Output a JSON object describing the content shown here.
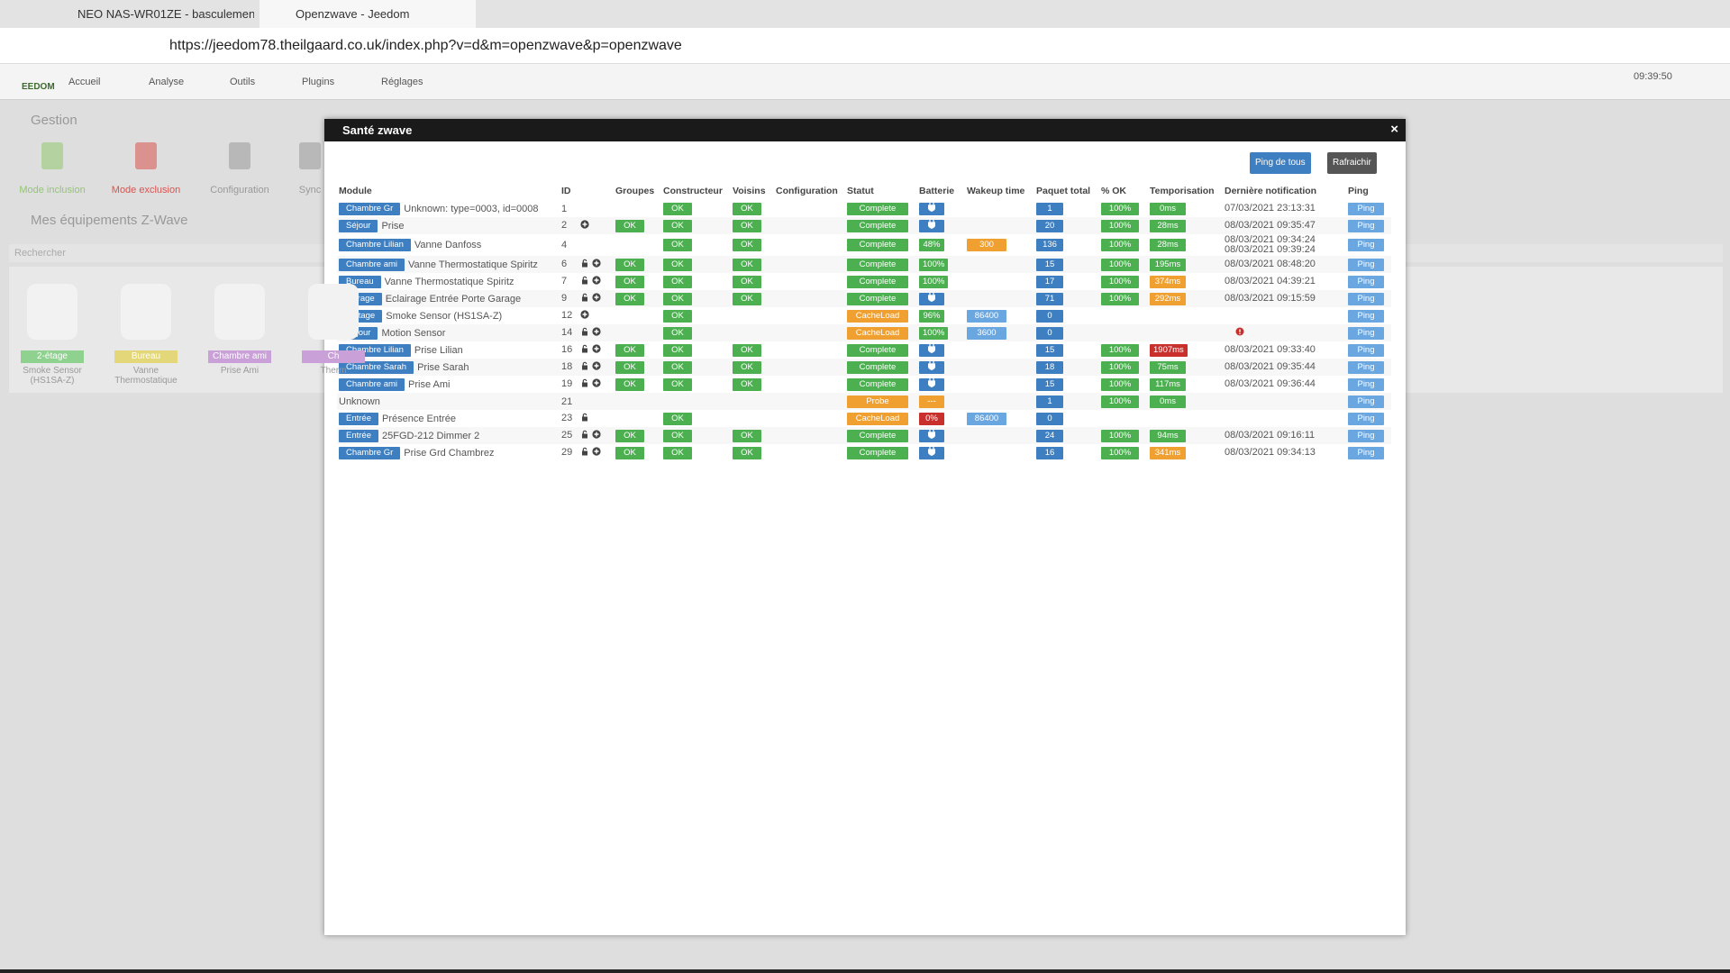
{
  "browser": {
    "tabs": [
      "NEO NAS-WR01ZE - basculemen",
      "Openzwave - Jeedom"
    ],
    "url": "https://jeedom78.theilgaard.co.uk/index.php?v=d&m=openzwave&p=openzwave"
  },
  "navbar": {
    "logo": "EEDOM",
    "menu": [
      "Accueil",
      "Analyse",
      "Outils",
      "Plugins",
      "Réglages"
    ],
    "time": "09:39:50"
  },
  "gestion": {
    "title": "Gestion",
    "actions": [
      "Mode inclusion",
      "Mode exclusion",
      "Configuration",
      "Sync"
    ]
  },
  "equipements": {
    "title": "Mes équipements Z-Wave",
    "search_placeholder": "Rechercher",
    "devices": [
      {
        "room": "2-étage",
        "name": "Smoke Sensor (HS1SA-Z)",
        "color": "#8fd18f"
      },
      {
        "room": "Bureau",
        "name": "Vanne Thermostatique",
        "color": "#e3d77a"
      },
      {
        "room": "Chambre ami",
        "name": "Prise Ami",
        "color": "#c9a0d8"
      },
      {
        "room": "Ch",
        "name": "Therm",
        "color": "#c9a0d8"
      }
    ]
  },
  "modal": {
    "title": "Santé zwave",
    "buttons": [
      "Ping de tous",
      "Rafraichir"
    ],
    "columns": [
      "Module",
      "ID",
      "Groupes",
      "Constructeur",
      "Voisins",
      "Configuration",
      "Statut",
      "Batterie",
      "Wakeup time",
      "Paquet total",
      "% OK",
      "Temporisation",
      "Dernière notification",
      "Ping"
    ],
    "rows": [
      {
        "room": "Chambre Gr",
        "module": "Unknown: type=0003, id=0008",
        "id": 1,
        "constructeur": "OK",
        "voisins": "OK",
        "statut": "Complete",
        "plug": true,
        "paquet": "1",
        "ok": "100%",
        "tempo": "0ms",
        "notification": [
          "07/03/2021 23:13:31"
        ],
        "ping": "Ping"
      },
      {
        "room": "Séjour",
        "module": "Prise",
        "id": 2,
        "plus": true,
        "groupes": "OK",
        "constructeur": "OK",
        "voisins": "OK",
        "statut": "Complete",
        "plug": true,
        "paquet": "20",
        "ok": "100%",
        "tempo": "28ms",
        "notification": [
          "08/03/2021 09:35:47"
        ],
        "ping": "Ping"
      },
      {
        "room": "Chambre Lilian",
        "module": "Vanne Danfoss",
        "id": 4,
        "constructeur": "OK",
        "voisins": "OK",
        "statut": "Complete",
        "batterie": "48%",
        "wakeup": "300",
        "paquet": "136",
        "ok": "100%",
        "tempo": "28ms",
        "notification": [
          "08/03/2021 09:34:24",
          "08/03/2021 09:39:24"
        ],
        "ping": "Ping",
        "colors": {
          "wakeup": "#f0a030"
        }
      },
      {
        "room": "Chambre ami",
        "module": "Vanne Thermostatique Spiritz",
        "id": 6,
        "lock": true,
        "plus": true,
        "groupes": "OK",
        "constructeur": "OK",
        "voisins": "OK",
        "statut": "Complete",
        "batterie": "100%",
        "paquet": "15",
        "ok": "100%",
        "tempo": "195ms",
        "notification": [
          "08/03/2021 08:48:20"
        ],
        "ping": "Ping"
      },
      {
        "room": "Bureau",
        "module": "Vanne Thermostatique Spiritz",
        "id": 7,
        "lock": true,
        "plus": true,
        "groupes": "OK",
        "constructeur": "OK",
        "voisins": "OK",
        "statut": "Complete",
        "batterie": "100%",
        "paquet": "17",
        "ok": "100%",
        "tempo": "374ms",
        "notification": [
          "08/03/2021 04:39:21"
        ],
        "ping": "Ping",
        "colors": {
          "tempo": "#f0a030"
        }
      },
      {
        "room": "Garage",
        "module": "Eclairage Entrée Porte Garage",
        "id": 9,
        "lock": true,
        "plus": true,
        "groupes": "OK",
        "constructeur": "OK",
        "voisins": "OK",
        "statut": "Complete",
        "plug": true,
        "paquet": "71",
        "ok": "100%",
        "tempo": "292ms",
        "notification": [
          "08/03/2021 09:15:59"
        ],
        "ping": "Ping",
        "colors": {
          "tempo": "#f0a030"
        }
      },
      {
        "room": "2-étage",
        "module": "Smoke Sensor (HS1SA-Z)",
        "id": 12,
        "plus": true,
        "constructeur": "OK",
        "statut": "CacheLoad",
        "batterie": "96%",
        "wakeup": "86400",
        "paquet": "0",
        "ping": "Ping",
        "colors": {
          "statut": "#f0a030"
        }
      },
      {
        "room": "Séjour",
        "module": "Motion Sensor",
        "id": 14,
        "lock": true,
        "plus": true,
        "constructeur": "OK",
        "statut": "CacheLoad",
        "batterie": "100%",
        "wakeup": "3600",
        "paquet": "0",
        "notification_error": true,
        "ping": "Ping",
        "colors": {
          "statut": "#f0a030"
        }
      },
      {
        "room": "Chambre Lilian",
        "module": "Prise Lilian",
        "id": 16,
        "lock": true,
        "plus": true,
        "groupes": "OK",
        "constructeur": "OK",
        "voisins": "OK",
        "statut": "Complete",
        "plug": true,
        "paquet": "15",
        "ok": "100%",
        "tempo": "1907ms",
        "notification": [
          "08/03/2021 09:33:40"
        ],
        "ping": "Ping",
        "colors": {
          "tempo": "#c9302c"
        }
      },
      {
        "room": "Chambre Sarah",
        "module": "Prise Sarah",
        "id": 18,
        "lock": true,
        "plus": true,
        "groupes": "OK",
        "constructeur": "OK",
        "voisins": "OK",
        "statut": "Complete",
        "plug": true,
        "paquet": "18",
        "ok": "100%",
        "tempo": "75ms",
        "notification": [
          "08/03/2021 09:35:44"
        ],
        "ping": "Ping"
      },
      {
        "room": "Chambre ami",
        "module": "Prise Ami",
        "id": 19,
        "lock": true,
        "plus": true,
        "groupes": "OK",
        "constructeur": "OK",
        "voisins": "OK",
        "statut": "Complete",
        "plug": true,
        "paquet": "15",
        "ok": "100%",
        "tempo": "117ms",
        "notification": [
          "08/03/2021 09:36:44"
        ],
        "ping": "Ping"
      },
      {
        "module": "Unknown",
        "id": 21,
        "statut": "Probe",
        "batterie": "---",
        "paquet": "1",
        "ok": "100%",
        "tempo": "0ms",
        "ping": "Ping",
        "colors": {
          "statut": "#f0a030",
          "batterie": "#f0a030"
        }
      },
      {
        "room": "Entrée",
        "module": "Présence Entrée",
        "id": 23,
        "lock": true,
        "constructeur": "OK",
        "statut": "CacheLoad",
        "batterie": "0%",
        "wakeup": "86400",
        "paquet": "0",
        "ping": "Ping",
        "colors": {
          "statut": "#f0a030",
          "batterie": "#c9302c"
        }
      },
      {
        "room": "Entrée",
        "module": "25FGD-212 Dimmer 2",
        "id": 25,
        "lock": true,
        "plus": true,
        "groupes": "OK",
        "constructeur": "OK",
        "voisins": "OK",
        "statut": "Complete",
        "plug": true,
        "paquet": "24",
        "ok": "100%",
        "tempo": "94ms",
        "notification": [
          "08/03/2021 09:16:11"
        ],
        "ping": "Ping"
      },
      {
        "room": "Chambre Gr",
        "module": "Prise Grd Chambrez",
        "id": 29,
        "lock": true,
        "plus": true,
        "groupes": "OK",
        "constructeur": "OK",
        "voisins": "OK",
        "statut": "Complete",
        "plug": true,
        "paquet": "16",
        "ok": "100%",
        "tempo": "341ms",
        "notification": [
          "08/03/2021 09:34:13"
        ],
        "ping": "Ping",
        "colors": {
          "tempo": "#f0a030"
        }
      }
    ]
  }
}
